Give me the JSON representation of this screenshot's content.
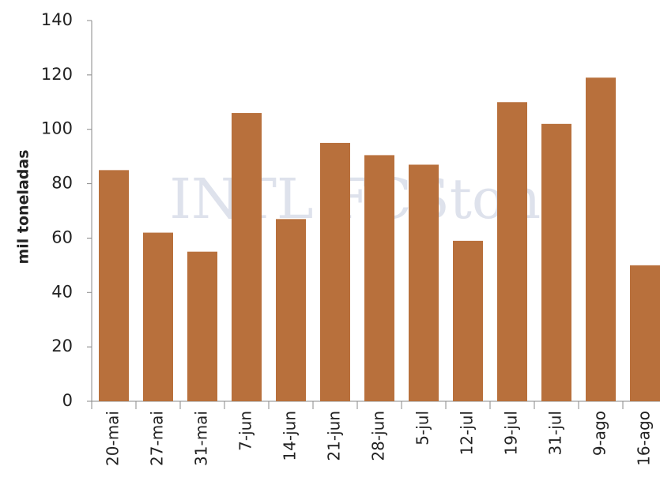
{
  "chart_data": {
    "type": "bar",
    "y_label": "mil toneladas",
    "watermark": "INTL FCStone",
    "categories": [
      "20-mai",
      "27-mai",
      "31-mai",
      "7-jun",
      "14-jun",
      "21-jun",
      "28-jun",
      "5-jul",
      "12-jul",
      "19-jul",
      "31-jul",
      "9-ago",
      "16-ago"
    ],
    "values": [
      85,
      62,
      55,
      106,
      67,
      95,
      90.5,
      87,
      59,
      110,
      102,
      119,
      50
    ],
    "color": "#b8703c",
    "ylim": [
      0,
      140
    ],
    "yticks": [
      0,
      20,
      40,
      60,
      80,
      100,
      120,
      140
    ],
    "grid": false
  }
}
